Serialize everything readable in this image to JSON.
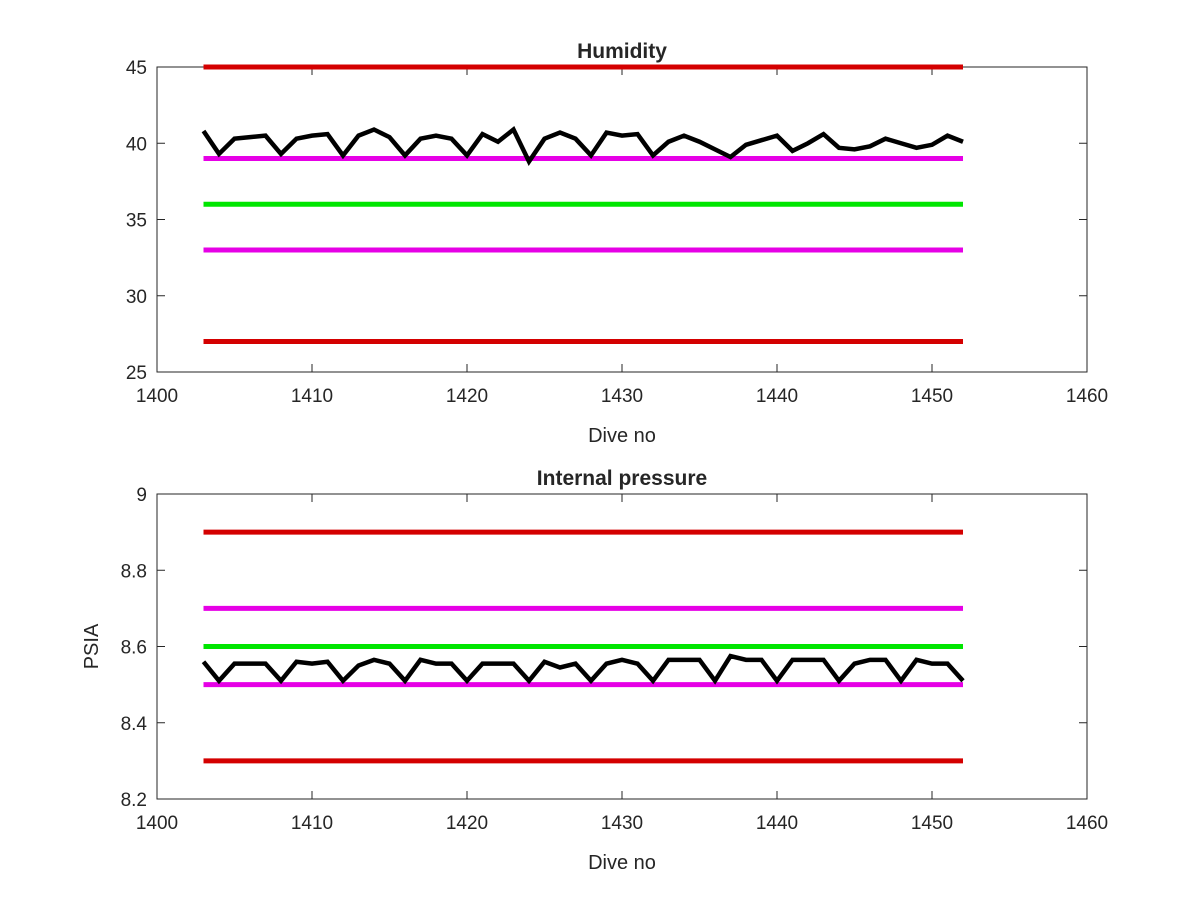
{
  "chart_data": [
    {
      "type": "line",
      "title": "Humidity",
      "xlabel": "Dive no",
      "ylabel": "",
      "xlim": [
        1400,
        1460
      ],
      "ylim": [
        25,
        45
      ],
      "xticks": [
        1400,
        1410,
        1420,
        1430,
        1440,
        1450,
        1460
      ],
      "yticks": [
        25,
        30,
        35,
        40,
        45
      ],
      "grid": false,
      "reference_lines": [
        {
          "y": 45,
          "x": [
            1403,
            1452
          ],
          "color": "#d40000"
        },
        {
          "y": 39,
          "x": [
            1403,
            1452
          ],
          "color": "#e600e6"
        },
        {
          "y": 36,
          "x": [
            1403,
            1452
          ],
          "color": "#00e600"
        },
        {
          "y": 33,
          "x": [
            1403,
            1452
          ],
          "color": "#e600e6"
        },
        {
          "y": 27,
          "x": [
            1403,
            1452
          ],
          "color": "#d40000"
        }
      ],
      "series": [
        {
          "color": "#000000",
          "x": [
            1403,
            1404,
            1405,
            1406,
            1407,
            1408,
            1409,
            1410,
            1411,
            1412,
            1413,
            1414,
            1415,
            1416,
            1417,
            1418,
            1419,
            1420,
            1421,
            1422,
            1423,
            1424,
            1425,
            1426,
            1427,
            1428,
            1429,
            1430,
            1431,
            1432,
            1433,
            1434,
            1435,
            1436,
            1437,
            1438,
            1439,
            1440,
            1441,
            1442,
            1443,
            1444,
            1445,
            1446,
            1447,
            1448,
            1449,
            1450,
            1451,
            1452
          ],
          "values": [
            40.8,
            39.3,
            40.3,
            40.4,
            40.5,
            39.3,
            40.3,
            40.5,
            40.6,
            39.2,
            40.5,
            40.9,
            40.4,
            39.2,
            40.3,
            40.5,
            40.3,
            39.2,
            40.6,
            40.1,
            40.9,
            38.8,
            40.3,
            40.7,
            40.3,
            39.2,
            40.7,
            40.5,
            40.6,
            39.2,
            40.1,
            40.5,
            40.1,
            39.6,
            39.1,
            39.9,
            40.2,
            40.5,
            39.5,
            40.0,
            40.6,
            39.7,
            39.6,
            39.8,
            40.3,
            40.0,
            39.7,
            39.9,
            40.5,
            40.1
          ]
        }
      ]
    },
    {
      "type": "line",
      "title": "Internal pressure",
      "xlabel": "Dive no",
      "ylabel": "PSIA",
      "xlim": [
        1400,
        1460
      ],
      "ylim": [
        8.2,
        9
      ],
      "xticks": [
        1400,
        1410,
        1420,
        1430,
        1440,
        1450,
        1460
      ],
      "yticks": [
        8.2,
        8.4,
        8.6,
        8.8,
        9
      ],
      "grid": false,
      "reference_lines": [
        {
          "y": 8.9,
          "x": [
            1403,
            1452
          ],
          "color": "#d40000"
        },
        {
          "y": 8.7,
          "x": [
            1403,
            1452
          ],
          "color": "#e600e6"
        },
        {
          "y": 8.6,
          "x": [
            1403,
            1452
          ],
          "color": "#00e600"
        },
        {
          "y": 8.5,
          "x": [
            1403,
            1452
          ],
          "color": "#e600e6"
        },
        {
          "y": 8.3,
          "x": [
            1403,
            1452
          ],
          "color": "#d40000"
        }
      ],
      "series": [
        {
          "color": "#000000",
          "x": [
            1403,
            1404,
            1405,
            1406,
            1407,
            1408,
            1409,
            1410,
            1411,
            1412,
            1413,
            1414,
            1415,
            1416,
            1417,
            1418,
            1419,
            1420,
            1421,
            1422,
            1423,
            1424,
            1425,
            1426,
            1427,
            1428,
            1429,
            1430,
            1431,
            1432,
            1433,
            1434,
            1435,
            1436,
            1437,
            1438,
            1439,
            1440,
            1441,
            1442,
            1443,
            1444,
            1445,
            1446,
            1447,
            1448,
            1449,
            1450,
            1451,
            1452
          ],
          "values": [
            8.56,
            8.51,
            8.555,
            8.555,
            8.555,
            8.51,
            8.56,
            8.555,
            8.56,
            8.51,
            8.55,
            8.565,
            8.555,
            8.51,
            8.565,
            8.555,
            8.555,
            8.51,
            8.555,
            8.555,
            8.555,
            8.51,
            8.56,
            8.545,
            8.555,
            8.51,
            8.555,
            8.565,
            8.555,
            8.51,
            8.565,
            8.565,
            8.565,
            8.51,
            8.575,
            8.565,
            8.565,
            8.51,
            8.565,
            8.565,
            8.565,
            8.51,
            8.555,
            8.565,
            8.565,
            8.51,
            8.565,
            8.555,
            8.555,
            8.51
          ]
        }
      ]
    }
  ]
}
